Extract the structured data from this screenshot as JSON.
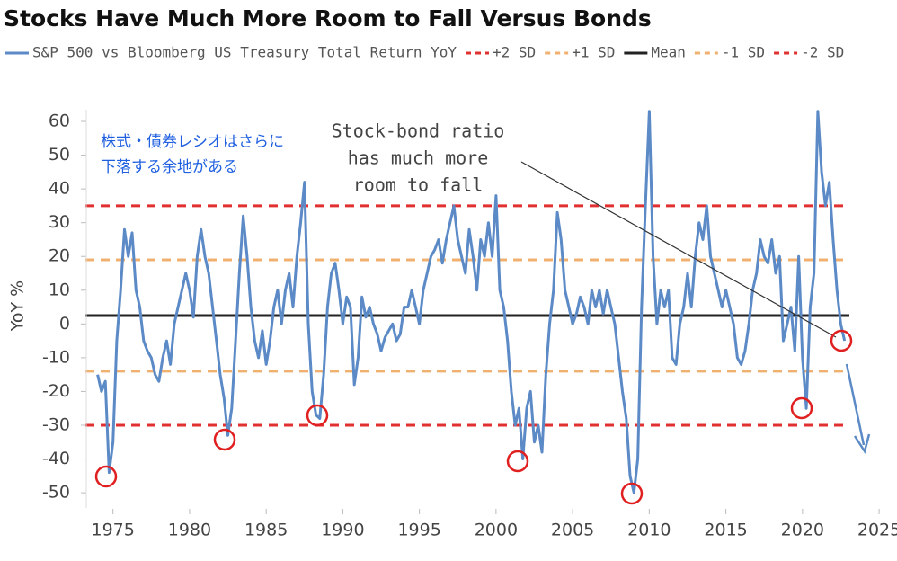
{
  "chart_data": {
    "type": "line",
    "title": "Stocks Have Much More Room to Fall Versus Bonds",
    "y_label": "YoY %",
    "xlim": [
      1973.2,
      2025.7
    ],
    "ylim": [
      -54.5,
      64
    ],
    "xticks": [
      1975,
      1980,
      1985,
      1990,
      1995,
      2000,
      2005,
      2010,
      2015,
      2020,
      2025
    ],
    "yticks": [
      -50,
      -40,
      -30,
      -20,
      -10,
      0,
      10,
      20,
      30,
      40,
      50,
      60
    ],
    "x": [
      1974,
      1974.25,
      1974.5,
      1974.75,
      1975,
      1975.25,
      1975.5,
      1975.75,
      1976,
      1976.25,
      1976.5,
      1976.75,
      1977,
      1977.25,
      1977.5,
      1977.75,
      1978,
      1978.25,
      1978.5,
      1978.75,
      1979,
      1979.25,
      1979.5,
      1979.75,
      1980,
      1980.25,
      1980.5,
      1980.75,
      1981,
      1981.25,
      1981.5,
      1981.75,
      1982,
      1982.25,
      1982.5,
      1982.75,
      1983,
      1983.25,
      1983.5,
      1983.75,
      1984,
      1984.25,
      1984.5,
      1984.75,
      1985,
      1985.25,
      1985.5,
      1985.75,
      1986,
      1986.25,
      1986.5,
      1986.75,
      1987,
      1987.25,
      1987.5,
      1987.75,
      1988,
      1988.25,
      1988.5,
      1988.75,
      1989,
      1989.25,
      1989.5,
      1989.75,
      1990,
      1990.25,
      1990.5,
      1990.75,
      1991,
      1991.25,
      1991.5,
      1991.75,
      1992,
      1992.25,
      1992.5,
      1992.75,
      1993,
      1993.25,
      1993.5,
      1993.75,
      1994,
      1994.25,
      1994.5,
      1994.75,
      1995,
      1995.25,
      1995.5,
      1995.75,
      1996,
      1996.25,
      1996.5,
      1996.75,
      1997,
      1997.25,
      1997.5,
      1997.75,
      1998,
      1998.25,
      1998.5,
      1998.75,
      1999,
      1999.25,
      1999.5,
      1999.75,
      2000,
      2000.25,
      2000.5,
      2000.75,
      2001,
      2001.25,
      2001.5,
      2001.75,
      2002,
      2002.25,
      2002.5,
      2002.75,
      2003,
      2003.25,
      2003.5,
      2003.75,
      2004,
      2004.25,
      2004.5,
      2004.75,
      2005,
      2005.25,
      2005.5,
      2005.75,
      2006,
      2006.25,
      2006.5,
      2006.75,
      2007,
      2007.25,
      2007.5,
      2007.75,
      2008,
      2008.25,
      2008.5,
      2008.75,
      2009,
      2009.25,
      2009.5,
      2009.75,
      2010,
      2010.25,
      2010.5,
      2010.75,
      2011,
      2011.25,
      2011.5,
      2011.75,
      2012,
      2012.25,
      2012.5,
      2012.75,
      2013,
      2013.25,
      2013.5,
      2013.75,
      2014,
      2014.25,
      2014.5,
      2014.75,
      2015,
      2015.25,
      2015.5,
      2015.75,
      2016,
      2016.25,
      2016.5,
      2016.75,
      2017,
      2017.25,
      2017.5,
      2017.75,
      2018,
      2018.25,
      2018.5,
      2018.75,
      2019,
      2019.25,
      2019.5,
      2019.75,
      2020,
      2020.25,
      2020.5,
      2020.75,
      2021,
      2021.25,
      2021.5,
      2021.75,
      2022,
      2022.25,
      2022.5,
      2022.75
    ],
    "series": [
      {
        "name": "S&P 500 vs Bloomberg US Treasury Total Return YoY",
        "color": "#5b8ac6",
        "values": [
          -15,
          -20,
          -17,
          -44,
          -35,
          -5,
          10,
          28,
          20,
          27,
          10,
          5,
          -5,
          -8,
          -10,
          -15,
          -17,
          -10,
          -5,
          -12,
          0,
          5,
          10,
          15,
          10,
          2,
          20,
          28,
          20,
          15,
          5,
          -5,
          -15,
          -22,
          -33,
          -25,
          -5,
          15,
          32,
          20,
          5,
          -5,
          -10,
          -2,
          -12,
          -5,
          5,
          10,
          0,
          10,
          15,
          5,
          20,
          30,
          42,
          0,
          -20,
          -27,
          -28,
          -15,
          5,
          15,
          18,
          10,
          0,
          8,
          5,
          -18,
          -10,
          8,
          2,
          5,
          0,
          -3,
          -8,
          -4,
          -2,
          0,
          -5,
          -3,
          5,
          5,
          10,
          5,
          0,
          10,
          15,
          20,
          22,
          25,
          18,
          25,
          30,
          35,
          25,
          20,
          15,
          28,
          20,
          10,
          25,
          20,
          30,
          20,
          38,
          10,
          5,
          -5,
          -20,
          -30,
          -25,
          -40,
          -25,
          -20,
          -35,
          -30,
          -38,
          -15,
          0,
          10,
          33,
          25,
          10,
          5,
          0,
          3,
          8,
          5,
          0,
          10,
          5,
          10,
          3,
          10,
          5,
          0,
          -10,
          -20,
          -28,
          -45,
          -50,
          -40,
          5,
          35,
          63,
          20,
          0,
          10,
          5,
          10,
          -10,
          -12,
          0,
          5,
          15,
          5,
          20,
          30,
          25,
          35,
          20,
          15,
          10,
          5,
          10,
          5,
          0,
          -10,
          -12,
          -8,
          0,
          10,
          15,
          25,
          20,
          18,
          25,
          15,
          20,
          -5,
          0,
          5,
          -8,
          20,
          -10,
          -25,
          5,
          15,
          63,
          45,
          35,
          42,
          25,
          10,
          0,
          -5
        ]
      }
    ],
    "reference_lines": [
      {
        "name": "+2 SD",
        "value": 35,
        "color": "#e03030",
        "dashed": true
      },
      {
        "name": "+1 SD",
        "value": 19,
        "color": "#f0b070",
        "dashed": true
      },
      {
        "name": "Mean",
        "value": 2.5,
        "color": "#222222",
        "dashed": false
      },
      {
        "name": "-1 SD",
        "value": -14,
        "color": "#f0b070",
        "dashed": true
      },
      {
        "name": "-2 SD",
        "value": -30,
        "color": "#e03030",
        "dashed": true
      }
    ],
    "annotations": {
      "japanese": [
        "株式・債券レシオはさらに",
        "下落する余地がある"
      ],
      "english": [
        "Stock-bond ratio",
        "has much more",
        "room to fall"
      ]
    }
  }
}
